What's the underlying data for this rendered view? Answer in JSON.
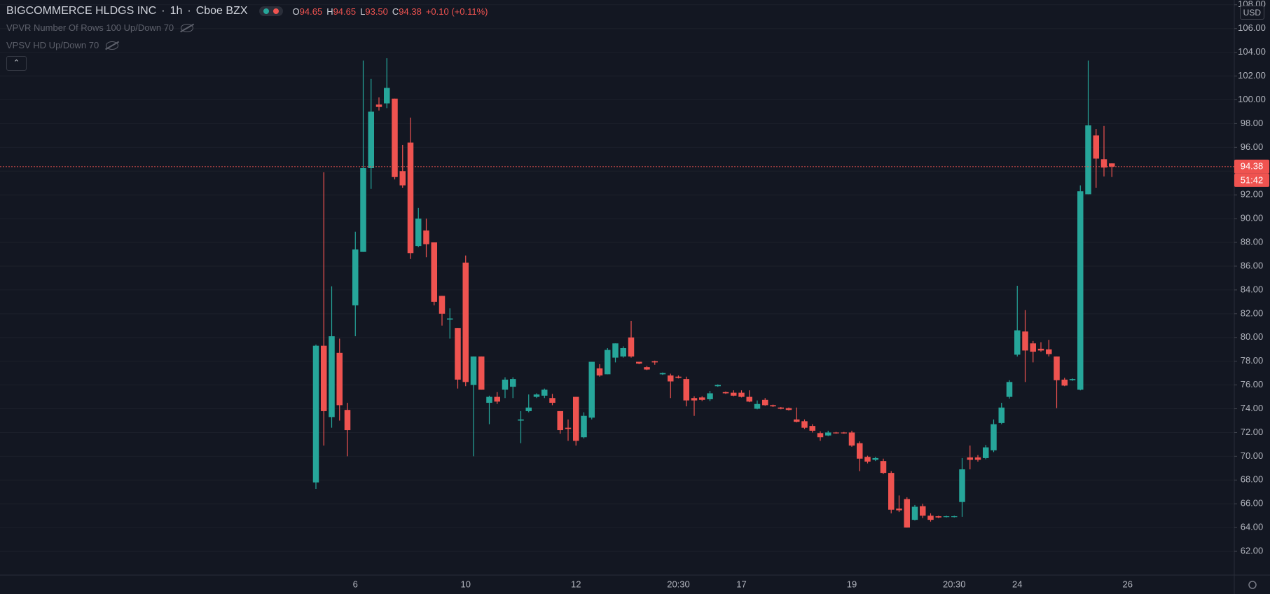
{
  "chart_data": {
    "type": "candlestick",
    "title": "BIGCOMMERCE HLDGS INC",
    "interval": "1h",
    "exchange": "Cboe BZX",
    "ohlc_legend": [
      {
        "label": "O",
        "value": "94.65"
      },
      {
        "label": "H",
        "value": "94.65"
      },
      {
        "label": "L",
        "value": "93.50"
      },
      {
        "label": "C",
        "value": "94.38"
      }
    ],
    "change": "+0.10 (+0.11%)",
    "indicators": [
      "VPVR Number Of Rows 100 Up/Down 70",
      "VPSV HD Up/Down 70"
    ],
    "currency": "USD",
    "up_color": "#26a69a",
    "down_color": "#ef5350",
    "grid": true,
    "categories": [
      null,
      null,
      null,
      null,
      null,
      "6",
      null,
      null,
      null,
      null,
      null,
      null,
      null,
      null,
      null,
      null,
      null,
      null,
      null,
      "10",
      null,
      null,
      null,
      null,
      null,
      null,
      null,
      null,
      null,
      null,
      null,
      null,
      null,
      "12",
      null,
      null,
      null,
      null,
      null,
      null,
      null,
      null,
      null,
      null,
      null,
      null,
      "20:30",
      null,
      null,
      null,
      null,
      null,
      null,
      null,
      "17",
      null,
      null,
      null,
      null,
      null,
      null,
      null,
      null,
      null,
      null,
      null,
      null,
      null,
      "19",
      null,
      null,
      null,
      null,
      null,
      null,
      null,
      null,
      null,
      null,
      null,
      null,
      "20:30",
      null,
      null,
      null,
      null,
      null,
      null,
      null,
      "24",
      null,
      null,
      null,
      null,
      null,
      null,
      null,
      null,
      null,
      null,
      null,
      null,
      null,
      "26"
    ],
    "open": [
      67.8,
      79.3,
      73.3,
      78.7,
      73.9,
      82.7,
      87.2,
      94.25,
      99.6,
      99.7,
      100.1,
      94.0,
      96.4,
      87.7,
      89.0,
      88.0,
      83.5,
      81.5,
      80.8,
      86.3,
      76.0,
      78.4,
      74.5,
      75.0,
      75.6,
      75.85,
      73.0,
      73.8,
      75.0,
      75.1,
      74.9,
      73.8,
      72.4,
      75.0,
      71.6,
      73.25,
      77.4,
      76.9,
      78.3,
      78.4,
      80.0,
      77.95,
      77.5,
      78.0,
      76.9,
      76.8,
      76.7,
      76.5,
      74.9,
      74.95,
      74.8,
      75.9,
      75.4,
      75.35,
      75.35,
      75.0,
      74.0,
      74.75,
      74.3,
      74.1,
      74.05,
      73.1,
      72.95,
      72.55,
      71.95,
      71.75,
      72.0,
      72.0,
      72.0,
      71.1,
      69.95,
      69.7,
      69.6,
      68.6,
      65.6,
      66.4,
      64.65,
      65.8,
      65.0,
      64.95,
      64.9,
      64.9,
      66.15,
      69.9,
      69.9,
      69.85,
      70.5,
      72.8,
      75.0,
      78.55,
      80.5,
      79.5,
      79.05,
      79.0,
      78.4,
      76.45,
      76.4,
      75.6,
      92.05,
      97.0,
      95.0,
      94.65,
      null,
      null
    ],
    "high": [
      79.4,
      93.9,
      84.3,
      79.9,
      74.5,
      88.9,
      103.3,
      101.75,
      100.2,
      103.5,
      100.1,
      96.2,
      98.5,
      90.9,
      90.0,
      88.0,
      83.5,
      82.45,
      80.8,
      86.9,
      78.4,
      78.4,
      75.1,
      75.4,
      76.65,
      76.65,
      73.8,
      75.2,
      75.3,
      75.7,
      75.25,
      73.8,
      73.1,
      75.0,
      73.7,
      77.95,
      77.75,
      79.1,
      79.5,
      79.25,
      81.4,
      77.95,
      77.6,
      78.05,
      77.05,
      76.95,
      76.8,
      76.7,
      75.05,
      75.05,
      75.5,
      76.05,
      75.45,
      75.55,
      75.55,
      75.55,
      74.7,
      74.9,
      74.35,
      74.15,
      74.1,
      74.1,
      73.1,
      72.7,
      72.1,
      72.15,
      72.05,
      72.05,
      72.15,
      71.25,
      70.05,
      69.95,
      69.8,
      68.75,
      66.7,
      66.55,
      65.9,
      66.0,
      65.2,
      65.0,
      65.0,
      65.0,
      69.85,
      70.9,
      70.1,
      70.95,
      73.1,
      74.5,
      76.4,
      84.35,
      82.3,
      79.7,
      79.6,
      79.8,
      78.4,
      76.6,
      76.55,
      92.8,
      103.3,
      97.55,
      97.8,
      94.65,
      null,
      null
    ],
    "low": [
      67.25,
      70.9,
      72.4,
      73.0,
      70.0,
      80.1,
      87.2,
      92.5,
      99.1,
      99.3,
      93.3,
      92.6,
      86.6,
      87.6,
      86.75,
      82.7,
      81.0,
      79.9,
      75.7,
      75.9,
      70.0,
      75.6,
      72.7,
      74.4,
      74.9,
      74.9,
      71.1,
      73.7,
      74.9,
      74.9,
      74.3,
      71.9,
      71.3,
      70.9,
      71.5,
      73.1,
      76.7,
      76.9,
      77.9,
      78.3,
      78.3,
      77.75,
      77.25,
      77.7,
      76.85,
      74.9,
      76.55,
      74.2,
      73.4,
      74.65,
      74.65,
      75.85,
      75.25,
      75.05,
      74.95,
      74.55,
      73.95,
      74.25,
      74.15,
      73.95,
      73.85,
      72.85,
      72.3,
      72.0,
      71.3,
      71.7,
      71.9,
      71.9,
      70.8,
      68.75,
      69.4,
      69.6,
      68.5,
      65.2,
      65.3,
      64.0,
      64.6,
      64.8,
      64.5,
      64.8,
      64.85,
      64.85,
      64.9,
      68.9,
      69.55,
      69.75,
      70.35,
      72.7,
      74.85,
      78.4,
      76.25,
      77.9,
      78.8,
      78.4,
      74.05,
      75.9,
      76.35,
      75.55,
      92.05,
      92.6,
      93.55,
      93.5,
      null,
      null
    ],
    "close": [
      79.3,
      73.8,
      80.1,
      74.3,
      72.2,
      87.4,
      94.25,
      99.0,
      99.4,
      101.0,
      93.5,
      92.8,
      87.1,
      90.0,
      87.85,
      83.0,
      82.0,
      81.6,
      76.45,
      76.25,
      78.4,
      75.6,
      75.0,
      74.6,
      76.45,
      76.5,
      73.1,
      74.1,
      75.2,
      75.6,
      74.5,
      72.2,
      72.3,
      71.3,
      73.4,
      77.95,
      76.8,
      78.95,
      79.5,
      79.1,
      78.4,
      77.8,
      77.3,
      77.9,
      77.0,
      76.3,
      76.6,
      74.7,
      74.7,
      74.75,
      75.3,
      76.0,
      75.3,
      75.1,
      75.0,
      74.6,
      74.4,
      74.3,
      74.2,
      74.0,
      73.9,
      72.9,
      72.4,
      72.15,
      71.6,
      72.0,
      71.95,
      71.95,
      70.9,
      69.8,
      69.55,
      69.85,
      68.6,
      65.5,
      65.45,
      64.0,
      65.75,
      65.0,
      64.65,
      64.85,
      64.95,
      64.95,
      68.9,
      69.7,
      69.7,
      70.75,
      72.7,
      74.1,
      76.25,
      80.6,
      78.9,
      78.8,
      78.9,
      78.6,
      76.4,
      75.95,
      76.5,
      92.3,
      97.85,
      95.05,
      94.3,
      94.38,
      null,
      null
    ],
    "ylim": [
      60,
      108.4
    ],
    "yticks": [
      {
        "value": 62,
        "label": "62.00"
      },
      {
        "value": 64,
        "label": "64.00"
      },
      {
        "value": 66,
        "label": "66.00"
      },
      {
        "value": 68,
        "label": "68.00"
      },
      {
        "value": 70,
        "label": "70.00"
      },
      {
        "value": 72,
        "label": "72.00"
      },
      {
        "value": 74,
        "label": "74.00"
      },
      {
        "value": 76,
        "label": "76.00"
      },
      {
        "value": 78,
        "label": "78.00"
      },
      {
        "value": 80,
        "label": "80.00"
      },
      {
        "value": 82,
        "label": "82.00"
      },
      {
        "value": 84,
        "label": "84.00"
      },
      {
        "value": 86,
        "label": "86.00"
      },
      {
        "value": 88,
        "label": "88.00"
      },
      {
        "value": 90,
        "label": "90.00"
      },
      {
        "value": 92,
        "label": "92.00"
      },
      {
        "value": 94,
        "label": "94.00"
      },
      {
        "value": 96,
        "label": "96.00"
      },
      {
        "value": 98,
        "label": "98.00"
      },
      {
        "value": 100,
        "label": "100.00"
      },
      {
        "value": 102,
        "label": "102.00"
      },
      {
        "value": 104,
        "label": "104.00"
      },
      {
        "value": 106,
        "label": "106.00"
      },
      {
        "value": 108,
        "label": "108.00"
      }
    ],
    "last_price": 94.38,
    "countdown": "51:42"
  }
}
